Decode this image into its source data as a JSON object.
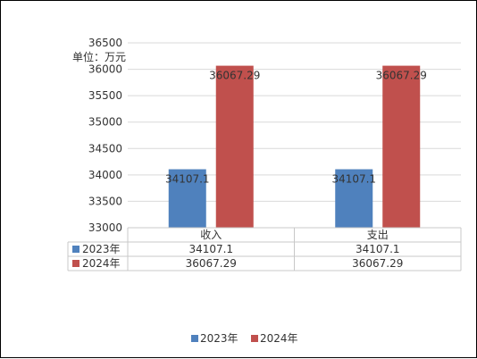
{
  "chart_data": {
    "type": "bar",
    "unit_label": "单位：万元",
    "categories": [
      "收入",
      "支出"
    ],
    "series": [
      {
        "name": "2023年",
        "color": "#4f81bd",
        "values": [
          34107.1,
          34107.1
        ],
        "labels": [
          "34107.1",
          "34107.1"
        ]
      },
      {
        "name": "2024年",
        "color": "#c0504d",
        "values": [
          36067.29,
          36067.29
        ],
        "labels": [
          "36067.29",
          "36067.29"
        ]
      }
    ],
    "ylim": [
      33000,
      36500
    ],
    "yticks": [
      "33000",
      "33500",
      "34000",
      "34500",
      "35000",
      "35500",
      "36000",
      "36500"
    ],
    "grid": true,
    "legend": "bottom",
    "data_table": true
  }
}
